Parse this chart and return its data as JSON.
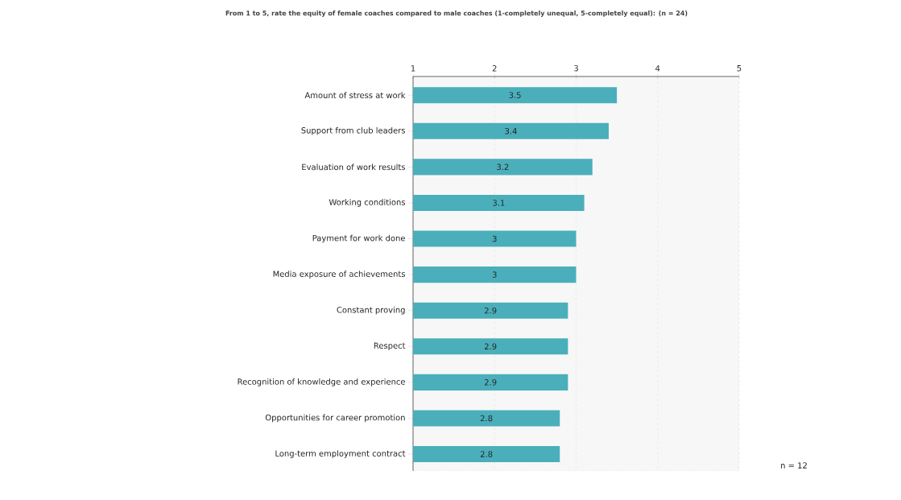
{
  "chart_data": {
    "type": "bar",
    "orientation": "horizontal",
    "title": "From 1 to 5, rate the equity of female coaches compared to male coaches (1-completely unequal, 5-completely equal): (n = 24)",
    "categories": [
      "Amount of stress at work",
      "Support from club leaders",
      "Evaluation of work results",
      "Working conditions",
      "Payment for work done",
      "Media exposure of achievements",
      "Constant proving",
      "Respect",
      "Recognition of knowledge and experience",
      "Opportunities for career promotion",
      "Long-term employment contract"
    ],
    "values": [
      3.5,
      3.4,
      3.2,
      3.1,
      3,
      3,
      2.9,
      2.9,
      2.9,
      2.8,
      2.8
    ],
    "color": "#4aafbb",
    "xlim": [
      1,
      5
    ],
    "xticks": [
      1,
      2,
      3,
      4,
      5
    ],
    "grid": "x",
    "data_labels": true,
    "annotations": [
      "n = 12"
    ]
  }
}
